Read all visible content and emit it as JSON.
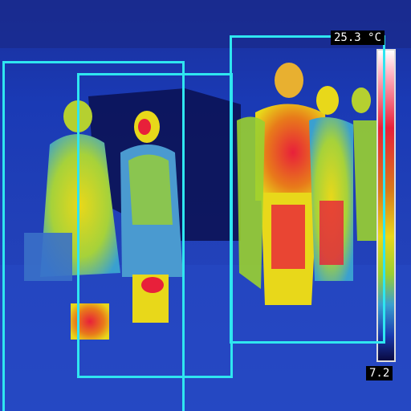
{
  "thermal_scale": {
    "max_label": "25.3 °C",
    "min_label": "7.2",
    "gradient_colors": [
      "#ffffff",
      "#ffb0c0",
      "#e8203a",
      "#d87a1a",
      "#e8d81a",
      "#9ad030",
      "#3aa0d0",
      "#1a3ab0",
      "#0a0a40"
    ]
  },
  "detections": [
    {
      "label": "person"
    },
    {
      "label": "person"
    },
    {
      "label": "person"
    }
  ],
  "palette": {
    "background": "#0a1a7a",
    "box_outline": "#2fe6f0"
  }
}
